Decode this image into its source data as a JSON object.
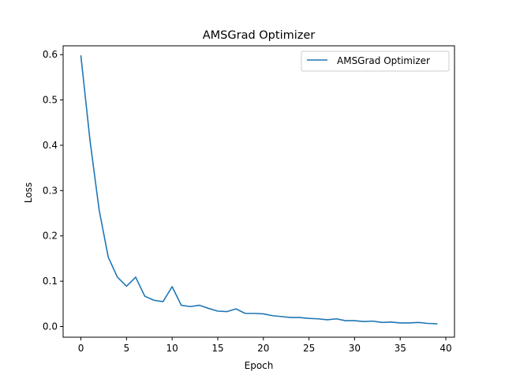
{
  "chart_data": {
    "type": "line",
    "title": "AMSGrad Optimizer",
    "xlabel": "Epoch",
    "ylabel": "Loss",
    "xlim": [
      -1.95,
      40.95
    ],
    "ylim": [
      -0.0235,
      0.6195
    ],
    "xticks": [
      0,
      5,
      10,
      15,
      20,
      25,
      30,
      35,
      40
    ],
    "yticks": [
      0.0,
      0.1,
      0.2,
      0.3,
      0.4,
      0.5,
      0.6
    ],
    "xtick_labels": [
      "0",
      "5",
      "10",
      "15",
      "20",
      "25",
      "30",
      "35",
      "40"
    ],
    "ytick_labels": [
      "0.0",
      "0.1",
      "0.2",
      "0.3",
      "0.4",
      "0.5",
      "0.6"
    ],
    "legend_position": "top-right",
    "grid": false,
    "x": [
      0,
      1,
      2,
      3,
      4,
      5,
      6,
      7,
      8,
      9,
      10,
      11,
      12,
      13,
      14,
      15,
      16,
      17,
      18,
      19,
      20,
      21,
      22,
      23,
      24,
      25,
      26,
      27,
      28,
      29,
      30,
      31,
      32,
      33,
      34,
      35,
      36,
      37,
      38,
      39
    ],
    "series": [
      {
        "name": "AMSGrad Optimizer",
        "color": "#1f77b4",
        "values": [
          0.597,
          0.41,
          0.257,
          0.153,
          0.109,
          0.089,
          0.109,
          0.067,
          0.058,
          0.055,
          0.088,
          0.047,
          0.044,
          0.047,
          0.04,
          0.034,
          0.033,
          0.039,
          0.029,
          0.029,
          0.028,
          0.024,
          0.022,
          0.02,
          0.02,
          0.018,
          0.017,
          0.015,
          0.017,
          0.013,
          0.013,
          0.011,
          0.012,
          0.009,
          0.01,
          0.008,
          0.008,
          0.009,
          0.007,
          0.006
        ]
      }
    ]
  }
}
